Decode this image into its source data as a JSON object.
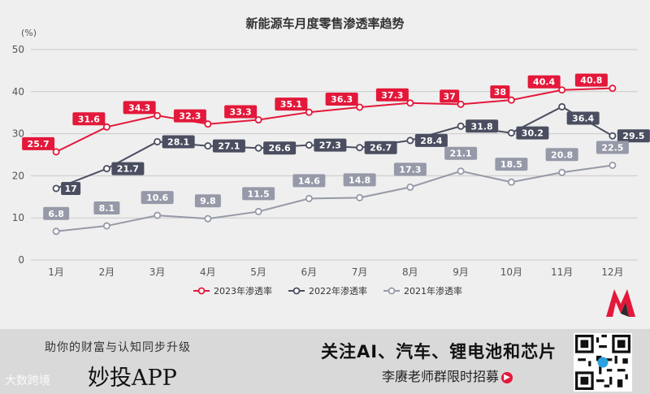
{
  "chart_data": {
    "type": "line",
    "title": "新能源车月度零售渗透率趋势",
    "ylabel": "(%)",
    "ylim": [
      0,
      50
    ],
    "yticks": [
      0,
      10,
      20,
      30,
      40,
      50
    ],
    "categories": [
      "1月",
      "2月",
      "3月",
      "4月",
      "5月",
      "6月",
      "7月",
      "8月",
      "9月",
      "10月",
      "11月",
      "12月"
    ],
    "series": [
      {
        "name": "2023年渗透率",
        "color": "#e3183a",
        "values": [
          25.7,
          31.6,
          34.3,
          32.3,
          33.3,
          35.1,
          36.3,
          37.3,
          37,
          38,
          40.4,
          40.8
        ]
      },
      {
        "name": "2022年渗透率",
        "color": "#4a4e60",
        "values": [
          17,
          21.7,
          28.1,
          27.1,
          26.6,
          27.3,
          26.7,
          28.4,
          31.8,
          30.2,
          36.4,
          29.5
        ]
      },
      {
        "name": "2021年渗透率",
        "color": "#9699a8",
        "values": [
          6.8,
          8.1,
          10.6,
          9.8,
          11.5,
          14.6,
          14.8,
          17.3,
          21.1,
          18.5,
          20.8,
          22.5
        ]
      }
    ],
    "grid": true,
    "legend": "bottom"
  },
  "footer": {
    "slogan": "助你的财富与认知同步升级",
    "brand": "妙投APP",
    "watermark": "大数跨境",
    "headline": "关注AI、汽车、锂电池和芯片",
    "recruit": "李赓老师群限时招募",
    "arrow_icon": "arrow-right-icon"
  }
}
